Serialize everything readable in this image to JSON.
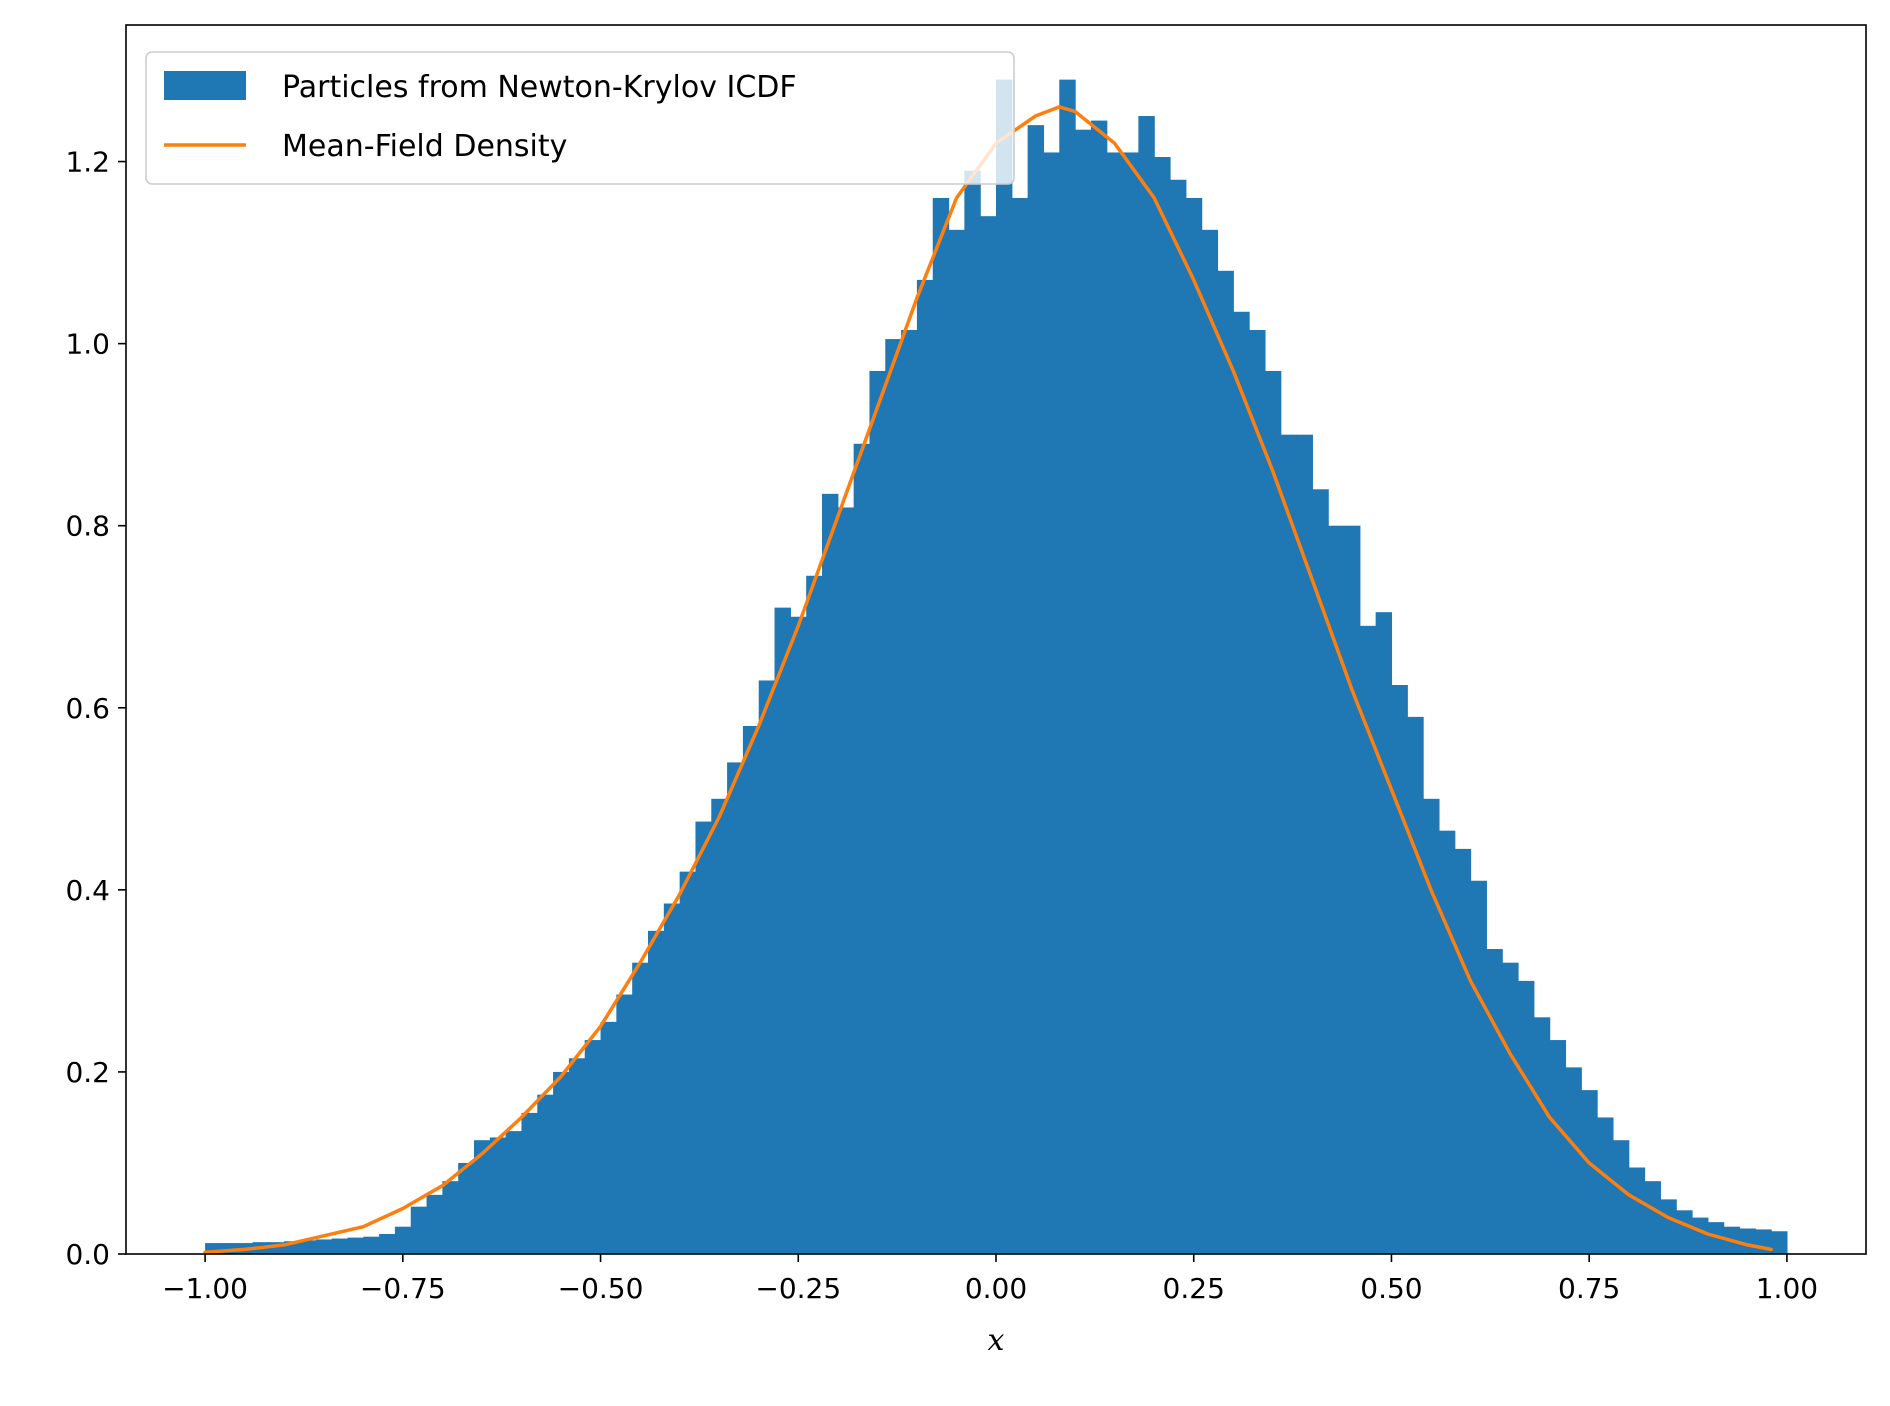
{
  "chart_data": {
    "type": "bar",
    "title": "",
    "xlabel": "x",
    "ylabel": "",
    "xlim": [
      -1.1,
      1.1
    ],
    "ylim": [
      0,
      1.35
    ],
    "grid": false,
    "legend_placement": "top-left",
    "x_ticks": [
      -1.0,
      -0.75,
      -0.5,
      -0.25,
      0.0,
      0.25,
      0.5,
      0.75,
      1.0
    ],
    "x_tick_labels": [
      "−1.00",
      "−0.75",
      "−0.50",
      "−0.25",
      "0.00",
      "0.25",
      "0.50",
      "0.75",
      "1.00"
    ],
    "y_ticks": [
      0.0,
      0.2,
      0.4,
      0.6,
      0.8,
      1.0,
      1.2
    ],
    "y_tick_labels": [
      "0.0",
      "0.2",
      "0.4",
      "0.6",
      "0.8",
      "1.0",
      "1.2"
    ],
    "series": [
      {
        "name": "Particles from Newton-Krylov ICDF",
        "kind": "histogram",
        "color": "#1f77b4",
        "bin_range": [
          -1.0,
          1.0
        ],
        "bin_count": 100,
        "values": [
          0.012,
          0.012,
          0.012,
          0.013,
          0.013,
          0.014,
          0.015,
          0.016,
          0.017,
          0.018,
          0.019,
          0.022,
          0.03,
          0.052,
          0.065,
          0.08,
          0.1,
          0.125,
          0.128,
          0.135,
          0.155,
          0.175,
          0.2,
          0.215,
          0.235,
          0.255,
          0.285,
          0.32,
          0.355,
          0.385,
          0.42,
          0.475,
          0.5,
          0.54,
          0.58,
          0.63,
          0.71,
          0.7,
          0.745,
          0.835,
          0.82,
          0.89,
          0.97,
          1.005,
          1.015,
          1.07,
          1.16,
          1.125,
          1.19,
          1.14,
          1.29,
          1.16,
          1.24,
          1.21,
          1.29,
          1.235,
          1.245,
          1.21,
          1.21,
          1.25,
          1.205,
          1.18,
          1.16,
          1.125,
          1.08,
          1.035,
          1.015,
          0.97,
          0.9,
          0.9,
          0.84,
          0.8,
          0.8,
          0.69,
          0.705,
          0.625,
          0.59,
          0.5,
          0.465,
          0.445,
          0.41,
          0.335,
          0.32,
          0.3,
          0.26,
          0.235,
          0.205,
          0.18,
          0.15,
          0.125,
          0.095,
          0.08,
          0.06,
          0.048,
          0.04,
          0.035,
          0.03,
          0.028,
          0.027,
          0.025
        ]
      },
      {
        "name": "Mean-Field Density",
        "kind": "line",
        "color": "#ff7f0e",
        "x": [
          -1.0,
          -0.95,
          -0.9,
          -0.85,
          -0.8,
          -0.75,
          -0.7,
          -0.65,
          -0.6,
          -0.55,
          -0.5,
          -0.45,
          -0.4,
          -0.35,
          -0.3,
          -0.25,
          -0.2,
          -0.15,
          -0.1,
          -0.05,
          0.0,
          0.05,
          0.08,
          0.1,
          0.15,
          0.2,
          0.25,
          0.3,
          0.35,
          0.4,
          0.45,
          0.5,
          0.55,
          0.6,
          0.65,
          0.7,
          0.75,
          0.8,
          0.85,
          0.9,
          0.95,
          0.98
        ],
        "y": [
          0.002,
          0.005,
          0.01,
          0.02,
          0.03,
          0.05,
          0.075,
          0.11,
          0.15,
          0.195,
          0.25,
          0.32,
          0.395,
          0.48,
          0.58,
          0.69,
          0.81,
          0.93,
          1.05,
          1.16,
          1.22,
          1.25,
          1.26,
          1.255,
          1.22,
          1.16,
          1.07,
          0.97,
          0.86,
          0.74,
          0.62,
          0.51,
          0.4,
          0.3,
          0.22,
          0.15,
          0.1,
          0.065,
          0.04,
          0.022,
          0.01,
          0.005
        ]
      }
    ]
  }
}
